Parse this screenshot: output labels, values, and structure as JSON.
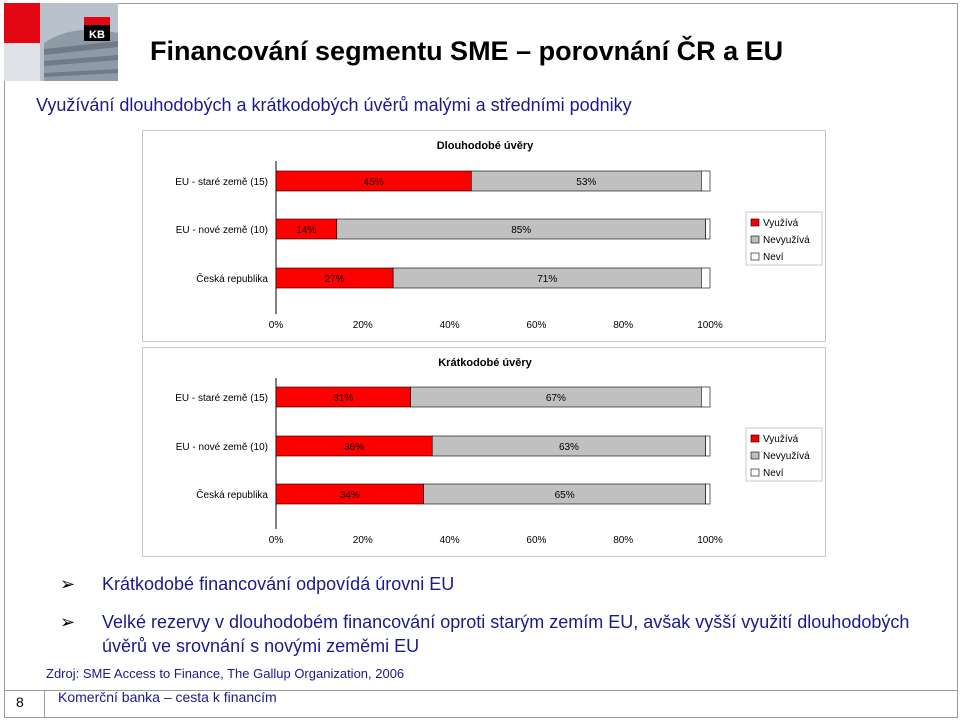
{
  "header": {
    "title": "Financování segmentu SME – porovnání ČR a EU",
    "subtitle": "Využívání dlouhodobých a krátkodobých úvěrů malými a středními podniky",
    "logo_text": "KB"
  },
  "colors": {
    "uses": "#ff0000",
    "not_uses": "#c0c0c0",
    "unknown": "#ffffff",
    "text_blue": "#1a1a8c"
  },
  "chart_data": [
    {
      "type": "bar",
      "orientation": "horizontal",
      "stacked": true,
      "title": "Dlouhodobé úvěry",
      "categories": [
        "EU - staré země (15)",
        "EU - nové země (10)",
        "Česká republika"
      ],
      "series": [
        {
          "name": "Využívá",
          "values": [
            45,
            14,
            27
          ]
        },
        {
          "name": "Nevyužívá",
          "values": [
            53,
            85,
            71
          ]
        },
        {
          "name": "Neví",
          "values": [
            2,
            1,
            2
          ]
        }
      ],
      "labels": [
        [
          "45%",
          "53%"
        ],
        [
          "14%",
          "85%"
        ],
        [
          "27%",
          "71%"
        ]
      ],
      "xlim": [
        0,
        100
      ],
      "xticks": [
        "0%",
        "20%",
        "40%",
        "60%",
        "80%",
        "100%"
      ],
      "legend": "right"
    },
    {
      "type": "bar",
      "orientation": "horizontal",
      "stacked": true,
      "title": "Krátkodobé úvěry",
      "categories": [
        "EU - staré země (15)",
        "EU - nové země (10)",
        "Česká republika"
      ],
      "series": [
        {
          "name": "Využívá",
          "values": [
            31,
            36,
            34
          ]
        },
        {
          "name": "Nevyužívá",
          "values": [
            67,
            63,
            65
          ]
        },
        {
          "name": "Neví",
          "values": [
            2,
            1,
            1
          ]
        }
      ],
      "labels": [
        [
          "31%",
          "67%"
        ],
        [
          "36%",
          "63%"
        ],
        [
          "34%",
          "65%"
        ]
      ],
      "xlim": [
        0,
        100
      ],
      "xticks": [
        "0%",
        "20%",
        "40%",
        "60%",
        "80%",
        "100%"
      ],
      "legend": "right"
    }
  ],
  "bullets": [
    "Krátkodobé financování odpovídá úrovni EU",
    "Velké rezervy v dlouhodobém financování oproti starým zemím EU, avšak vyšší využití dlouhodobých úvěrů ve srovnání s novými zeměmi EU"
  ],
  "source": "Zdroj: SME Access to Finance, The Gallup Organization, 2006",
  "footer": {
    "page": "8",
    "text": "Komerční banka – cesta k financím"
  }
}
